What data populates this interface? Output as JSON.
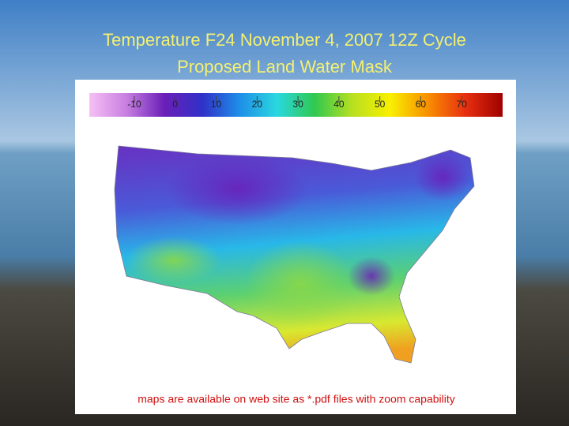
{
  "slide": {
    "title_lines": [
      "Temperature F24 November 4, 2007 12Z Cycle",
      "Proposed Land Water Mask"
    ],
    "colorbar": {
      "range": [
        -21,
        80
      ],
      "ticks": [
        -10,
        0,
        10,
        20,
        30,
        40,
        50,
        60,
        70
      ],
      "colors": [
        "#f6c0f4",
        "#c77ee0",
        "#6a1fb8",
        "#3030c8",
        "#1e8ee8",
        "#2ad8e0",
        "#30c850",
        "#b8e020",
        "#f8f000",
        "#f89000",
        "#e83010",
        "#a00000"
      ]
    },
    "caption": "maps are available on web site as *.pdf files with zoom capability"
  }
}
